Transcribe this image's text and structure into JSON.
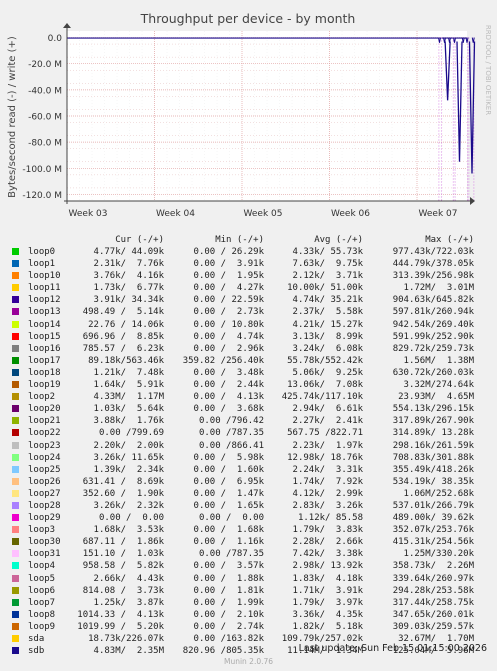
{
  "chart_data": {
    "type": "line",
    "title": "Throughput per device - by month",
    "ylabel": "Bytes/second read (-) / write (+)",
    "side_label": "RRDTOOL / TOBI OETIKER",
    "ylim": [
      -125,
      5
    ],
    "y_unit": "M",
    "y_ticks": [
      {
        "v": 0,
        "label": "0.0"
      },
      {
        "v": -20,
        "label": "-20.0 M"
      },
      {
        "v": -40,
        "label": "-40.0 M"
      },
      {
        "v": -60,
        "label": "-60.0 M"
      },
      {
        "v": -80,
        "label": "-80.0 M"
      },
      {
        "v": -100,
        "label": "-100.0 M"
      },
      {
        "v": -120,
        "label": "-120.0 M"
      }
    ],
    "x_range_days": [
      0,
      32
    ],
    "x_ticks": [
      {
        "d": 0,
        "label": "Week 03"
      },
      {
        "d": 7,
        "label": "Week 04"
      },
      {
        "d": 14,
        "label": "Week 05"
      },
      {
        "d": 21,
        "label": "Week 06"
      },
      {
        "d": 28,
        "label": "Week 07"
      }
    ],
    "dips": [
      {
        "day": 30.45,
        "value": -48,
        "color": "#1a0a8c"
      },
      {
        "day": 31.4,
        "value": -95,
        "color": "#1a0a8c"
      },
      {
        "day": 32.4,
        "value": -104,
        "color": "#1a0a8c"
      }
    ],
    "gap_lines_days": [
      29.75,
      29.95,
      30.9,
      31.05,
      32.05,
      32.15,
      32.55
    ]
  },
  "legend": {
    "headers": {
      "cur": "Cur (-/+)",
      "min": "Min (-/+)",
      "avg": "Avg (-/+)",
      "max": "Max (-/+)"
    },
    "rows": [
      {
        "name": "loop0",
        "color": "#00cc00",
        "cur": "4.77k/ 44.09k",
        "min": "0.00 / 26.29k",
        "avg": "4.33k/ 55.73k",
        "max": "977.43k/722.03k"
      },
      {
        "name": "loop1",
        "color": "#0066b3",
        "cur": "2.31k/  7.76k",
        "min": "0.00 /  3.91k",
        "avg": "7.63k/  9.75k",
        "max": "444.79k/378.05k"
      },
      {
        "name": "loop10",
        "color": "#ff8000",
        "cur": "3.76k/  4.16k",
        "min": "0.00 /  1.95k",
        "avg": "2.12k/  3.71k",
        "max": "313.39k/256.98k"
      },
      {
        "name": "loop11",
        "color": "#ffcc00",
        "cur": "1.73k/  6.77k",
        "min": "0.00 /  4.27k",
        "avg": "10.00k/ 51.00k",
        "max": "1.72M/  3.01M"
      },
      {
        "name": "loop12",
        "color": "#330099",
        "cur": "3.91k/ 34.34k",
        "min": "0.00 / 22.59k",
        "avg": "4.74k/ 35.21k",
        "max": "904.63k/645.82k"
      },
      {
        "name": "loop13",
        "color": "#990099",
        "cur": "498.49 /  5.14k",
        "min": "0.00 /  2.73k",
        "avg": "2.37k/  5.58k",
        "max": "597.81k/260.94k"
      },
      {
        "name": "loop14",
        "color": "#ccff00",
        "cur": "22.76 / 14.06k",
        "min": "0.00 / 10.80k",
        "avg": "4.21k/ 15.27k",
        "max": "942.54k/269.40k"
      },
      {
        "name": "loop15",
        "color": "#ff0000",
        "cur": "696.96 /  8.85k",
        "min": "0.00 /  4.74k",
        "avg": "3.13k/  8.99k",
        "max": "591.99k/252.90k"
      },
      {
        "name": "loop16",
        "color": "#808080",
        "cur": "785.57 /  6.23k",
        "min": "0.00 /  2.96k",
        "avg": "3.24k/  6.08k",
        "max": "829.72k/259.73k"
      },
      {
        "name": "loop17",
        "color": "#008f00",
        "cur": "89.18k/563.46k",
        "min": "359.82 /256.40k",
        "avg": "55.78k/552.42k",
        "max": "1.56M/  1.38M"
      },
      {
        "name": "loop18",
        "color": "#00487d",
        "cur": "1.21k/  7.48k",
        "min": "0.00 /  3.48k",
        "avg": "5.06k/  9.25k",
        "max": "630.72k/260.03k"
      },
      {
        "name": "loop19",
        "color": "#b35a00",
        "cur": "1.64k/  5.91k",
        "min": "0.00 /  2.44k",
        "avg": "13.06k/  7.08k",
        "max": "3.32M/274.64k"
      },
      {
        "name": "loop2",
        "color": "#b38f00",
        "cur": "4.33M/  1.17M",
        "min": "0.00 /  4.13k",
        "avg": "425.74k/117.10k",
        "max": "23.93M/  4.65M"
      },
      {
        "name": "loop20",
        "color": "#6b006b",
        "cur": "1.03k/  5.64k",
        "min": "0.00 /  3.68k",
        "avg": "2.94k/  6.61k",
        "max": "554.13k/296.15k"
      },
      {
        "name": "loop21",
        "color": "#8fb300",
        "cur": "3.88k/  1.76k",
        "min": "0.00 /796.42",
        "avg": "2.27k/  2.41k",
        "max": "317.89k/267.90k"
      },
      {
        "name": "loop22",
        "color": "#b30000",
        "cur": "0.00 /799.69",
        "min": "0.00 /787.35",
        "avg": "567.75 /822.71",
        "max": "314.89k/ 13.28k"
      },
      {
        "name": "loop23",
        "color": "#bebebe",
        "cur": "2.20k/  2.00k",
        "min": "0.00 /866.41",
        "avg": "2.23k/  1.97k",
        "max": "298.16k/261.59k"
      },
      {
        "name": "loop24",
        "color": "#80ff80",
        "cur": "3.26k/ 11.65k",
        "min": "0.00 /  5.98k",
        "avg": "12.98k/ 18.76k",
        "max": "708.83k/301.88k"
      },
      {
        "name": "loop25",
        "color": "#80c9ff",
        "cur": "1.39k/  2.34k",
        "min": "0.00 /  1.60k",
        "avg": "2.24k/  3.31k",
        "max": "355.49k/418.26k"
      },
      {
        "name": "loop26",
        "color": "#ffc080",
        "cur": "631.41 /  8.69k",
        "min": "0.00 /  6.95k",
        "avg": "1.74k/  7.92k",
        "max": "534.19k/ 38.35k"
      },
      {
        "name": "loop27",
        "color": "#ffe680",
        "cur": "352.60 /  1.90k",
        "min": "0.00 /  1.47k",
        "avg": "4.12k/  2.99k",
        "max": "1.06M/252.68k"
      },
      {
        "name": "loop28",
        "color": "#aa80ff",
        "cur": "3.26k/  2.32k",
        "min": "0.00 /  1.65k",
        "avg": "2.83k/  3.26k",
        "max": "537.01k/266.79k"
      },
      {
        "name": "loop29",
        "color": "#ee00cc",
        "cur": "0.00 /  0.00",
        "min": "0.00 /  0.00",
        "avg": "1.12k/ 85.58",
        "max": "489.00k/ 39.62k"
      },
      {
        "name": "loop3",
        "color": "#ff8080",
        "cur": "1.68k/  3.53k",
        "min": "0.00 /  1.68k",
        "avg": "1.79k/  3.83k",
        "max": "352.07k/253.76k"
      },
      {
        "name": "loop30",
        "color": "#666600",
        "cur": "687.11 /  1.86k",
        "min": "0.00 /  1.16k",
        "avg": "2.28k/  2.66k",
        "max": "415.31k/254.56k"
      },
      {
        "name": "loop31",
        "color": "#ffbfff",
        "cur": "151.10 /  1.03k",
        "min": "0.00 /787.35",
        "avg": "7.42k/  3.38k",
        "max": "1.25M/330.20k"
      },
      {
        "name": "loop4",
        "color": "#00ffcc",
        "cur": "958.58 /  5.82k",
        "min": "0.00 /  3.57k",
        "avg": "2.98k/ 13.92k",
        "max": "358.73k/  2.26M"
      },
      {
        "name": "loop5",
        "color": "#cc6699",
        "cur": "2.66k/  4.43k",
        "min": "0.00 /  1.88k",
        "avg": "1.83k/  4.18k",
        "max": "339.64k/260.97k"
      },
      {
        "name": "loop6",
        "color": "#999900",
        "cur": "814.08 /  3.73k",
        "min": "0.00 /  1.81k",
        "avg": "1.71k/  3.91k",
        "max": "294.28k/253.58k"
      },
      {
        "name": "loop7",
        "color": "#009933",
        "cur": "1.25k/  3.87k",
        "min": "0.00 /  1.99k",
        "avg": "1.79k/  3.97k",
        "max": "317.44k/258.75k"
      },
      {
        "name": "loop8",
        "color": "#003399",
        "cur": "1014.33 /  4.13k",
        "min": "0.00 /  2.10k",
        "avg": "3.36k/  4.35k",
        "max": "347.65k/260.01k"
      },
      {
        "name": "loop9",
        "color": "#cc6600",
        "cur": "1019.99 /  5.20k",
        "min": "0.00 /  2.74k",
        "avg": "1.82k/  5.18k",
        "max": "309.03k/259.57k"
      },
      {
        "name": "sda",
        "color": "#ffcc00",
        "cur": "18.73k/226.07k",
        "min": "0.00 /163.82k",
        "avg": "109.79k/257.02k",
        "max": "32.67M/  1.70M"
      },
      {
        "name": "sdb",
        "color": "#1a0a8c",
        "cur": "4.83M/  2.35M",
        "min": "820.96 /805.35k",
        "avg": "11.14M/  1.34M",
        "max": "125.04M/  5.96M"
      }
    ]
  },
  "footer": {
    "last_update": "Last update:  Sun Feb 15 01:15:00 2026",
    "munin": "Munin 2.0.76"
  }
}
